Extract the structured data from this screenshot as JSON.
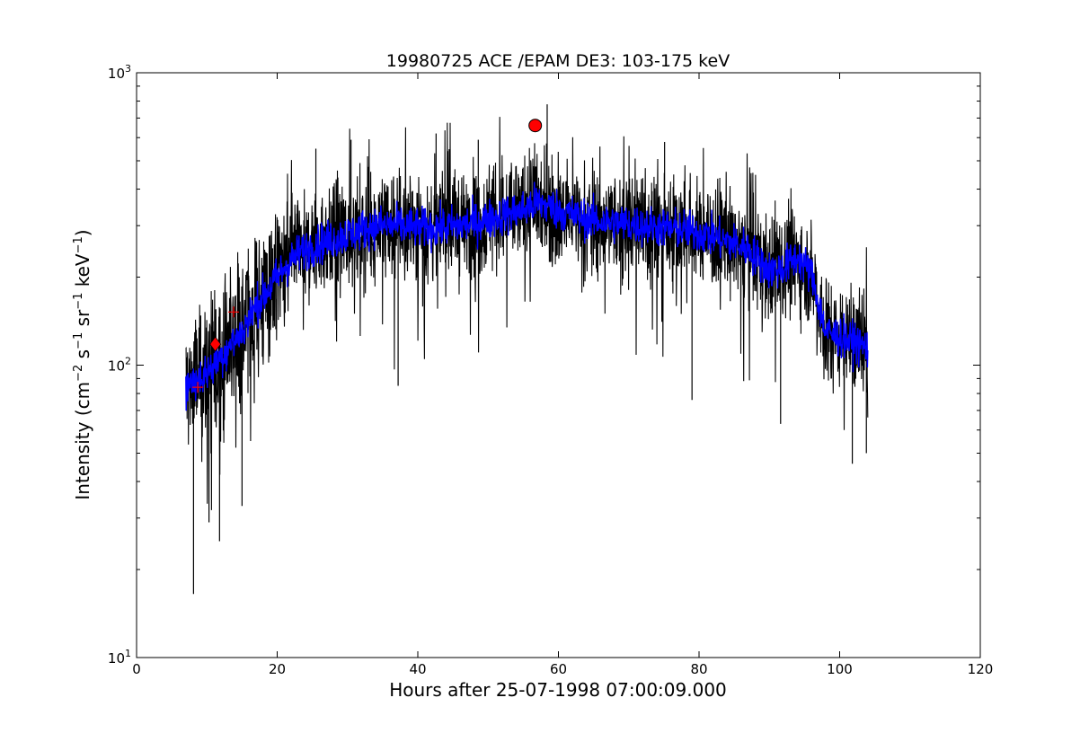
{
  "chart_data": {
    "type": "line",
    "title": "19980725 ACE /EPAM DE3: 103-175 keV",
    "xlabel": "Hours after 25-07-1998 07:00:09.000",
    "ylabel": {
      "parts": [
        "Intensity (cm",
        "−2",
        " s",
        "−1",
        " sr",
        "−1",
        " keV",
        "−1",
        ")"
      ]
    },
    "xlim": [
      0,
      120
    ],
    "ylim": [
      10,
      1000
    ],
    "yscale": "log",
    "x_ticks": [
      0,
      20,
      40,
      60,
      80,
      100,
      120
    ],
    "x_tick_labels": [
      "0",
      "20",
      "40",
      "60",
      "80",
      "100",
      "120"
    ],
    "y_ticks": [
      10,
      100,
      1000
    ],
    "y_tick_labels": [
      {
        "base": "10",
        "exp": "1"
      },
      {
        "base": "10",
        "exp": "2"
      },
      {
        "base": "10",
        "exp": "3"
      }
    ],
    "grid": false,
    "series": [
      {
        "style": "noisy-raw",
        "color": "#000000",
        "x": [
          7,
          9,
          11,
          13,
          15,
          17,
          19,
          21,
          23,
          25,
          28,
          31,
          34,
          37,
          40,
          43,
          46,
          49,
          52,
          55,
          57,
          60,
          63,
          66,
          69,
          72,
          75,
          78,
          81,
          84,
          87,
          90,
          92,
          94,
          96,
          98,
          100,
          102,
          104
        ],
        "y": [
          85,
          90,
          100,
          115,
          130,
          160,
          185,
          215,
          240,
          255,
          270,
          285,
          300,
          300,
          295,
          295,
          300,
          310,
          325,
          340,
          360,
          340,
          320,
          310,
          305,
          300,
          295,
          290,
          280,
          265,
          250,
          210,
          215,
          235,
          205,
          130,
          125,
          120,
          115
        ]
      },
      {
        "style": "smoothed-band",
        "color": "#0000ff",
        "x": [
          7,
          9,
          11,
          13,
          15,
          17,
          19,
          21,
          23,
          25,
          28,
          31,
          34,
          37,
          40,
          43,
          46,
          49,
          52,
          55,
          57,
          60,
          63,
          66,
          69,
          72,
          75,
          78,
          81,
          84,
          87,
          90,
          92,
          94,
          96,
          98,
          100,
          102,
          104
        ],
        "y": [
          85,
          90,
          100,
          115,
          130,
          160,
          185,
          215,
          240,
          255,
          270,
          285,
          300,
          300,
          295,
          295,
          300,
          310,
          325,
          340,
          360,
          340,
          320,
          310,
          305,
          300,
          295,
          290,
          280,
          265,
          250,
          210,
          215,
          235,
          205,
          130,
          125,
          120,
          115
        ]
      }
    ],
    "markers": [
      {
        "symbol": "plus",
        "x": 8.7,
        "y": 84,
        "color": "#ff0000"
      },
      {
        "symbol": "diamond",
        "x": 11.2,
        "y": 118,
        "color": "#ff0000"
      },
      {
        "symbol": "plus",
        "x": 13.8,
        "y": 152,
        "color": "#ff0000"
      },
      {
        "symbol": "circle",
        "x": 56.7,
        "y": 660,
        "color": "#ff0000"
      }
    ],
    "spikes": [
      {
        "x": 8.1,
        "y": 16.5
      },
      {
        "x": 10.3,
        "y": 29
      },
      {
        "x": 11.8,
        "y": 25
      },
      {
        "x": 15.0,
        "y": 33
      },
      {
        "x": 25.5,
        "y": 550
      },
      {
        "x": 30.5,
        "y": 590
      },
      {
        "x": 37.2,
        "y": 85
      },
      {
        "x": 42.6,
        "y": 620
      },
      {
        "x": 48.6,
        "y": 590
      },
      {
        "x": 58.4,
        "y": 780
      },
      {
        "x": 75.1,
        "y": 580
      },
      {
        "x": 79.0,
        "y": 76
      },
      {
        "x": 91.6,
        "y": 63
      },
      {
        "x": 101.8,
        "y": 46
      },
      {
        "x": 103.8,
        "y": 50
      }
    ]
  }
}
